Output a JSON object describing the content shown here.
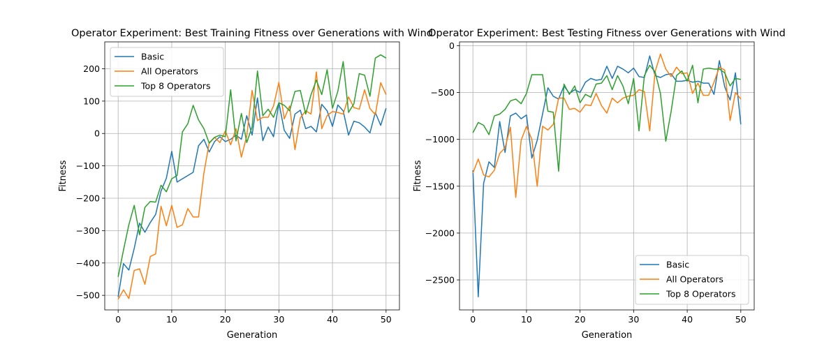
{
  "colors": {
    "Basic": "#1f77b4",
    "All Operators": "#ff7f0e",
    "Top 8 Operators": "#2ca02c",
    "grid": "#b0b0b0"
  },
  "chart_data": [
    {
      "type": "line",
      "title": "Operator Experiment: Best Training Fitness over Generations with Wind",
      "xlabel": "Generation",
      "ylabel": "Fitness",
      "xlim": [
        -2.5,
        52.5
      ],
      "ylim": [
        -545,
        283
      ],
      "xticks": [
        0,
        10,
        20,
        30,
        40,
        50
      ],
      "yticks": [
        -500,
        -400,
        -300,
        -200,
        -100,
        0,
        100,
        200
      ],
      "grid": true,
      "legend_position": "top-left",
      "x": [
        0,
        1,
        2,
        3,
        4,
        5,
        6,
        7,
        8,
        9,
        10,
        11,
        12,
        13,
        14,
        15,
        16,
        17,
        18,
        19,
        20,
        21,
        22,
        23,
        24,
        25,
        26,
        27,
        28,
        29,
        30,
        31,
        32,
        33,
        34,
        35,
        36,
        37,
        38,
        39,
        40,
        41,
        42,
        43,
        44,
        45,
        46,
        47,
        48,
        49,
        50
      ],
      "series": [
        {
          "name": "Basic",
          "values": [
            -505,
            -402,
            -422,
            -355,
            -277,
            -305,
            -275,
            -250,
            -178,
            -138,
            -55,
            -150,
            -140,
            -130,
            -120,
            -38,
            -18,
            -57,
            -25,
            -10,
            -25,
            -18,
            -5,
            -18,
            55,
            -5,
            110,
            -22,
            20,
            -10,
            95,
            10,
            -15,
            60,
            72,
            15,
            22,
            5,
            90,
            70,
            22,
            88,
            70,
            -5,
            38,
            33,
            20,
            2,
            65,
            25,
            78
          ]
        },
        {
          "name": "All Operators",
          "values": [
            -512,
            -483,
            -510,
            -423,
            -418,
            -466,
            -380,
            -372,
            -225,
            -285,
            -222,
            -290,
            -282,
            -232,
            -258,
            -258,
            -123,
            -28,
            -12,
            -28,
            8,
            -35,
            15,
            -73,
            -8,
            133,
            40,
            50,
            50,
            85,
            158,
            45,
            85,
            -50,
            48,
            70,
            60,
            190,
            15,
            55,
            68,
            65,
            60,
            113,
            80,
            75,
            135,
            77,
            58,
            157,
            120
          ]
        },
        {
          "name": "Top 8 Operators",
          "values": [
            -443,
            -360,
            -282,
            -222,
            -313,
            -228,
            -210,
            -212,
            -160,
            -180,
            -140,
            -130,
            5,
            30,
            87,
            42,
            15,
            -30,
            -12,
            -5,
            -10,
            135,
            -23,
            62,
            -28,
            20,
            193,
            55,
            75,
            50,
            95,
            87,
            70,
            130,
            133,
            60,
            120,
            165,
            120,
            197,
            78,
            130,
            222,
            65,
            92,
            185,
            180,
            115,
            233,
            243,
            233
          ]
        }
      ]
    },
    {
      "type": "line",
      "title": "Operator Experiment: Best Testing Fitness over Generations with Wind",
      "xlabel": "Generation",
      "ylabel": "Fitness",
      "xlim": [
        -2.5,
        52.5
      ],
      "ylim": [
        -2820,
        40
      ],
      "xticks": [
        0,
        10,
        20,
        30,
        40,
        50
      ],
      "yticks": [
        -2500,
        -2000,
        -1500,
        -1000,
        -500,
        0
      ],
      "grid": true,
      "legend_position": "bottom-right",
      "x": [
        0,
        1,
        2,
        3,
        4,
        5,
        6,
        7,
        8,
        9,
        10,
        11,
        12,
        13,
        14,
        15,
        16,
        17,
        18,
        19,
        20,
        21,
        22,
        23,
        24,
        25,
        26,
        27,
        28,
        29,
        30,
        31,
        32,
        33,
        34,
        35,
        36,
        37,
        38,
        39,
        40,
        41,
        42,
        43,
        44,
        45,
        46,
        47,
        48,
        49,
        50
      ],
      "series": [
        {
          "name": "Basic",
          "values": [
            -1330,
            -2680,
            -1470,
            -1240,
            -1300,
            -810,
            -1140,
            -750,
            -720,
            -780,
            -740,
            -1200,
            -1010,
            -730,
            -450,
            -540,
            -570,
            -430,
            -510,
            -470,
            -500,
            -390,
            -350,
            -370,
            -360,
            -220,
            -350,
            -220,
            -250,
            -290,
            -240,
            -330,
            -340,
            -110,
            -320,
            -340,
            -310,
            -300,
            -380,
            -380,
            -370,
            -390,
            -380,
            -400,
            -400,
            -520,
            -160,
            -440,
            -580,
            -290,
            -840
          ]
        },
        {
          "name": "All Operators",
          "values": [
            -1360,
            -1210,
            -1380,
            -1400,
            -1330,
            -1150,
            -1090,
            -870,
            -1620,
            -1010,
            -860,
            -1000,
            -1500,
            -860,
            -900,
            -840,
            -560,
            -560,
            -680,
            -670,
            -710,
            -630,
            -640,
            -510,
            -640,
            -720,
            -560,
            -610,
            -560,
            -540,
            -530,
            -470,
            -490,
            -910,
            -280,
            -90,
            -250,
            -330,
            -230,
            -300,
            -290,
            -510,
            -400,
            -530,
            -530,
            -390,
            -230,
            -260,
            -800,
            -500,
            -570
          ]
        },
        {
          "name": "Top 8 Operators",
          "values": [
            -930,
            -820,
            -850,
            -950,
            -750,
            -730,
            -680,
            -590,
            -570,
            -620,
            -510,
            -310,
            -310,
            -310,
            -700,
            -710,
            -1340,
            -410,
            -520,
            -430,
            -610,
            -520,
            -550,
            -410,
            -400,
            -320,
            -470,
            -320,
            -430,
            -620,
            -350,
            -910,
            -320,
            -210,
            -280,
            -510,
            -1020,
            -700,
            -320,
            -270,
            -380,
            -210,
            -610,
            -250,
            -240,
            -250,
            -250,
            -290,
            -430,
            -350,
            -360
          ]
        }
      ]
    }
  ]
}
